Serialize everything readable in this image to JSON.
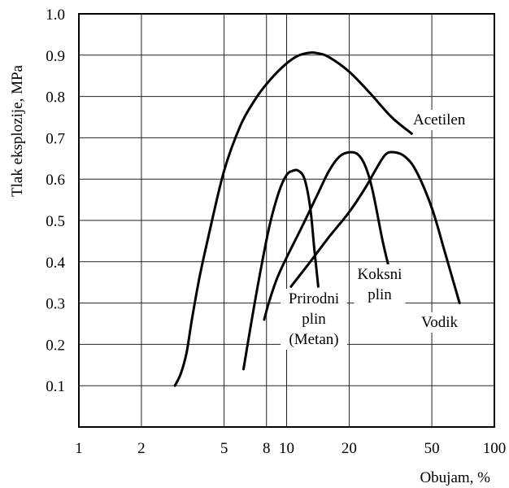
{
  "chart_data": {
    "type": "line",
    "xscale": "log",
    "xlabel": "Obujam, %",
    "ylabel": "Tlak eksplozije, MPa",
    "xlim": [
      1,
      100
    ],
    "ylim": [
      0,
      1.0
    ],
    "grid": true,
    "x_ticks": [
      {
        "value": 1,
        "label": "1"
      },
      {
        "value": 2,
        "label": "2"
      },
      {
        "value": 5,
        "label": "5"
      },
      {
        "value": 8,
        "label": "8"
      },
      {
        "value": 10,
        "label": "10"
      },
      {
        "value": 20,
        "label": "20"
      },
      {
        "value": 50,
        "label": "50"
      },
      {
        "value": 100,
        "label": "100"
      }
    ],
    "y_ticks": [
      {
        "value": 0.1,
        "label": "0.1"
      },
      {
        "value": 0.2,
        "label": "0.2"
      },
      {
        "value": 0.3,
        "label": "0.3"
      },
      {
        "value": 0.4,
        "label": "0.4"
      },
      {
        "value": 0.5,
        "label": "0.5"
      },
      {
        "value": 0.6,
        "label": "0.6"
      },
      {
        "value": 0.7,
        "label": "0.7"
      },
      {
        "value": 0.8,
        "label": "0.8"
      },
      {
        "value": 0.9,
        "label": "0.9"
      },
      {
        "value": 1.0,
        "label": "1.0"
      }
    ],
    "series": [
      {
        "name": "Acetilen",
        "label_lines": [
          "Acetilen"
        ],
        "x": [
          2.9,
          3.1,
          3.3,
          3.5,
          3.8,
          4.2,
          5.0,
          6.0,
          7.0,
          8.0,
          9.5,
          11.0,
          12.5,
          14.0,
          16.0,
          20.0,
          25.0,
          32.0,
          40.0
        ],
        "y": [
          0.1,
          0.13,
          0.18,
          0.26,
          0.36,
          0.46,
          0.62,
          0.73,
          0.79,
          0.83,
          0.87,
          0.895,
          0.905,
          0.905,
          0.895,
          0.86,
          0.81,
          0.75,
          0.71
        ]
      },
      {
        "name": "Prirodni plin (Metan)",
        "label_lines": [
          "Prirodni",
          "plin",
          "(Metan)"
        ],
        "x": [
          6.2,
          6.8,
          7.5,
          8.3,
          9.2,
          10.0,
          10.7,
          11.4,
          12.2,
          13.0,
          13.6,
          14.2
        ],
        "y": [
          0.14,
          0.26,
          0.38,
          0.49,
          0.57,
          0.61,
          0.62,
          0.62,
          0.6,
          0.53,
          0.43,
          0.34
        ]
      },
      {
        "name": "Koksni plin",
        "label_lines": [
          "Koksni",
          "plin"
        ],
        "x": [
          7.8,
          8.2,
          9.0,
          10.0,
          12.0,
          14.0,
          16.0,
          18.0,
          20.0,
          22.0,
          24.0,
          26.0,
          29.0,
          32.0
        ],
        "y": [
          0.26,
          0.3,
          0.36,
          0.41,
          0.49,
          0.56,
          0.62,
          0.655,
          0.665,
          0.66,
          0.63,
          0.57,
          0.45,
          0.36
        ]
      },
      {
        "name": "Vodik",
        "label_lines": [
          "Vodik"
        ],
        "x": [
          10.5,
          13.0,
          16.0,
          20.0,
          24.0,
          27.0,
          30.0,
          33.0,
          37.0,
          42.0,
          50.0,
          58.0,
          68.0
        ],
        "y": [
          0.34,
          0.4,
          0.46,
          0.52,
          0.58,
          0.625,
          0.66,
          0.665,
          0.655,
          0.62,
          0.53,
          0.42,
          0.3
        ]
      }
    ]
  }
}
